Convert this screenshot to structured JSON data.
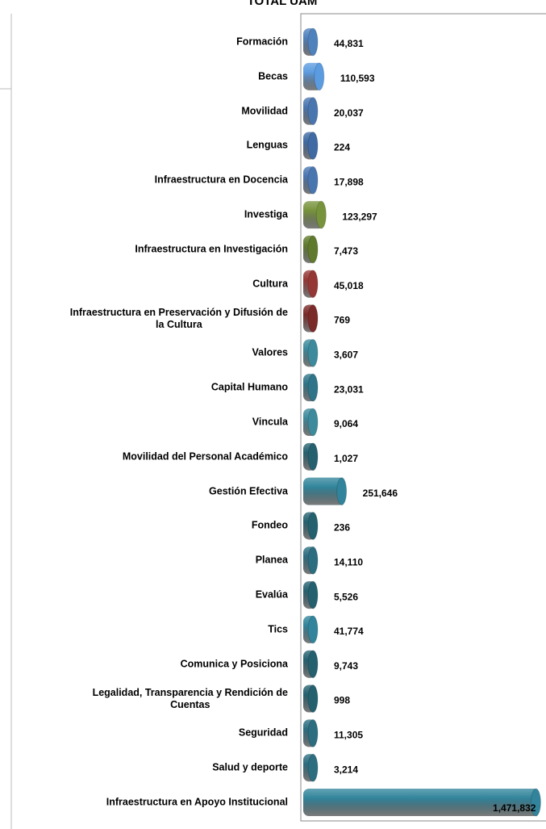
{
  "chart_data": {
    "type": "bar",
    "orientation": "horizontal",
    "title": "TOTAL UAM",
    "categories": [
      "Formación",
      "Becas",
      "Movilidad",
      "Lenguas",
      "Infraestructura en Docencia",
      "Investiga",
      "Infraestructura en Investigación",
      "Cultura",
      "Infraestructura en Preservación y Difusión de\nla Cultura",
      "Valores",
      "Capital Humano",
      "Vincula",
      "Movilidad del Personal Académico",
      "Gestión Efectiva",
      "Fondeo",
      "Planea",
      "Evalúa",
      "Tics",
      "Comunica y Posiciona",
      "Legalidad, Transparencia y Rendición de\nCuentas",
      "Seguridad",
      "Salud y deporte",
      "Infraestructura en Apoyo Institucional"
    ],
    "values": [
      44831,
      110593,
      20037,
      224,
      17898,
      123297,
      7473,
      45018,
      769,
      3607,
      23031,
      9064,
      1027,
      251646,
      236,
      14110,
      5526,
      41774,
      9743,
      998,
      11305,
      3214,
      1471832
    ],
    "value_labels": [
      "44,831",
      "110,593",
      "20,037",
      "224",
      "17,898",
      "123,297",
      "7,473",
      "45,018",
      "769",
      "3,607",
      "23,031",
      "9,064",
      "1,027",
      "251,646",
      "236",
      "14,110",
      "5,526",
      "41,774",
      "9,743",
      "998",
      "11,305",
      "3,214",
      "1,471,832"
    ],
    "colors": [
      "#4f81bd",
      "#5b9be0",
      "#4a76b0",
      "#3f6aa3",
      "#4a76b0",
      "#77933c",
      "#5f7a2c",
      "#953735",
      "#7a2a28",
      "#3d8a9c",
      "#2f7488",
      "#3d8a9c",
      "#25606f",
      "#31849b",
      "#25606f",
      "#2c6d80",
      "#25606f",
      "#31849b",
      "#25606f",
      "#25606f",
      "#2c6d80",
      "#2c6d80",
      "#31849b"
    ],
    "xlim": [
      0,
      1500000
    ]
  }
}
